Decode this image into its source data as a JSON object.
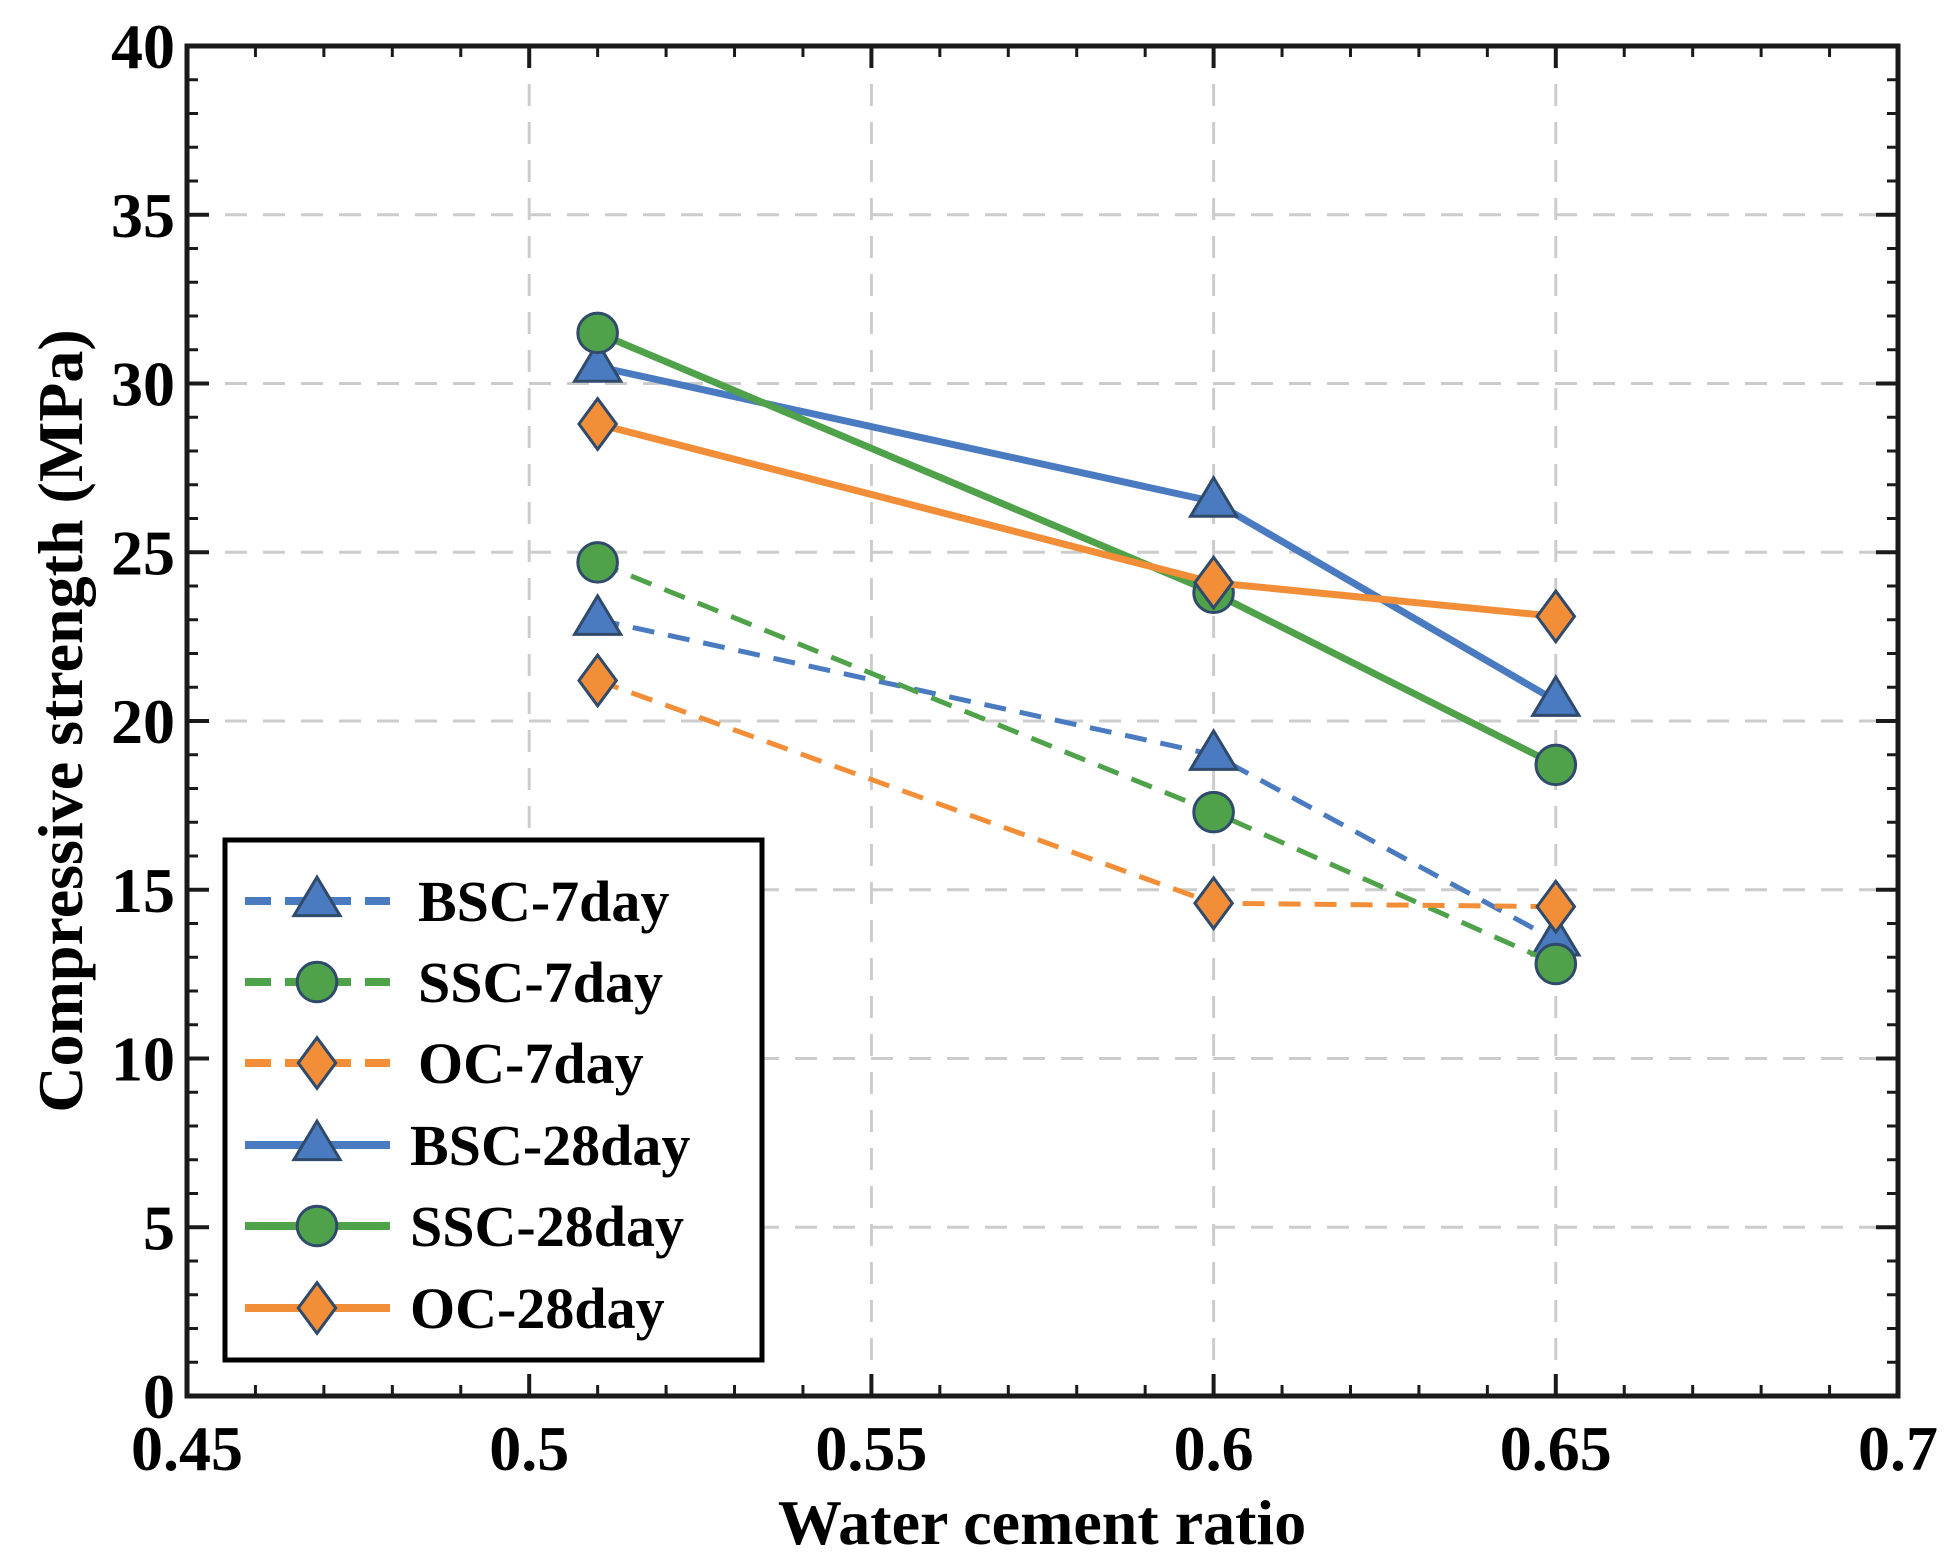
{
  "chart_data": {
    "type": "line",
    "title": "",
    "xlabel": "Water cement ratio",
    "ylabel": "Compressive strength (MPa)",
    "xlim": [
      0.45,
      0.7
    ],
    "ylim": [
      0,
      40
    ],
    "x_ticks": [
      "0.45",
      "0.5",
      "0.55",
      "0.6",
      "0.65",
      "0.7"
    ],
    "y_ticks": [
      "0",
      "5",
      "10",
      "15",
      "20",
      "25",
      "30",
      "35",
      "40"
    ],
    "grid": true,
    "legend_position": "lower-left",
    "x": [
      0.51,
      0.6,
      0.65
    ],
    "series": [
      {
        "name": "BSC-7day",
        "values": [
          23.0,
          19.0,
          13.5
        ],
        "color": "#4a7bc0",
        "line": "dashed",
        "marker": "triangle"
      },
      {
        "name": "SSC-7day",
        "values": [
          24.7,
          17.3,
          12.8
        ],
        "color": "#4fa24a",
        "line": "dashed",
        "marker": "circle"
      },
      {
        "name": "OC-7day",
        "values": [
          21.2,
          14.6,
          14.5
        ],
        "color": "#f28e38",
        "line": "dashed",
        "marker": "diamond"
      },
      {
        "name": "BSC-28day",
        "values": [
          30.5,
          26.5,
          20.6
        ],
        "color": "#4a7bc0",
        "line": "solid",
        "marker": "triangle"
      },
      {
        "name": "SSC-28day",
        "values": [
          31.5,
          23.8,
          18.7
        ],
        "color": "#4fa24a",
        "line": "solid",
        "marker": "circle"
      },
      {
        "name": "OC-28day",
        "values": [
          28.8,
          24.1,
          23.1
        ],
        "color": "#f28e38",
        "line": "solid",
        "marker": "diamond"
      }
    ]
  }
}
